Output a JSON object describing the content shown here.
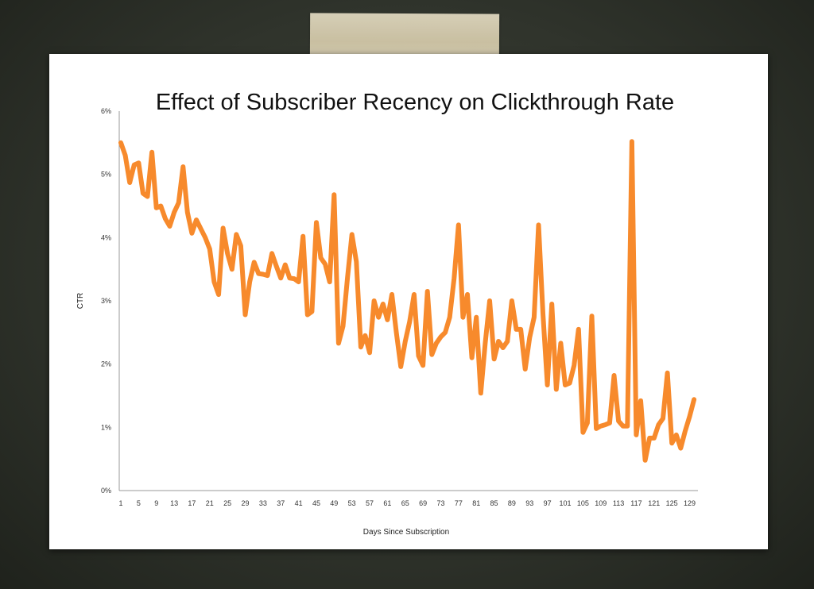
{
  "chart_data": {
    "type": "line",
    "title": "Effect of Subscriber Recency on Clickthrough Rate",
    "xlabel": "Days Since Subscription",
    "ylabel": "CTR",
    "ylim": [
      0,
      6
    ],
    "xlim": [
      1,
      131
    ],
    "y_ticks": [
      "0%",
      "1%",
      "2%",
      "3%",
      "4%",
      "5%",
      "6%"
    ],
    "x_ticks": [
      "1",
      "5",
      "9",
      "13",
      "17",
      "21",
      "25",
      "29",
      "33",
      "37",
      "41",
      "45",
      "49",
      "53",
      "57",
      "61",
      "65",
      "69",
      "73",
      "77",
      "81",
      "85",
      "89",
      "93",
      "97",
      "101",
      "105",
      "109",
      "113",
      "117",
      "121",
      "125",
      "129"
    ],
    "grid": false,
    "legend": "none",
    "series": [
      {
        "name": "CTR",
        "color": "#f78a2c",
        "unit": "%",
        "values": [
          5.5,
          5.3,
          4.87,
          5.15,
          5.18,
          4.7,
          4.65,
          5.35,
          4.47,
          4.5,
          4.3,
          4.18,
          4.4,
          4.55,
          5.12,
          4.4,
          4.07,
          4.28,
          4.14,
          4.0,
          3.82,
          3.3,
          3.1,
          4.15,
          3.75,
          3.5,
          4.05,
          3.87,
          2.78,
          3.3,
          3.61,
          3.43,
          3.42,
          3.4,
          3.75,
          3.55,
          3.36,
          3.57,
          3.36,
          3.35,
          3.3,
          4.02,
          2.78,
          2.83,
          4.24,
          3.68,
          3.58,
          3.3,
          4.68,
          2.33,
          2.6,
          3.36,
          4.05,
          3.62,
          2.27,
          2.45,
          2.18,
          3.0,
          2.74,
          2.95,
          2.7,
          3.1,
          2.5,
          1.96,
          2.36,
          2.67,
          3.1,
          2.13,
          1.98,
          3.15,
          2.15,
          2.33,
          2.43,
          2.5,
          2.74,
          3.36,
          4.2,
          2.74,
          3.1,
          2.1,
          2.74,
          1.54,
          2.33,
          3.0,
          2.08,
          2.36,
          2.26,
          2.36,
          3.0,
          2.55,
          2.55,
          1.92,
          2.42,
          2.74,
          4.2,
          2.8,
          1.67,
          2.95,
          1.6,
          2.33,
          1.67,
          1.7,
          1.98,
          2.55,
          0.92,
          1.07,
          2.76,
          0.98,
          1.02,
          1.04,
          1.07,
          1.82,
          1.1,
          1.02,
          1.02,
          5.52,
          0.88,
          1.42,
          0.48,
          0.83,
          0.83,
          1.04,
          1.14,
          1.86,
          0.75,
          0.88,
          0.67,
          0.94,
          1.17,
          1.44
        ]
      }
    ]
  }
}
